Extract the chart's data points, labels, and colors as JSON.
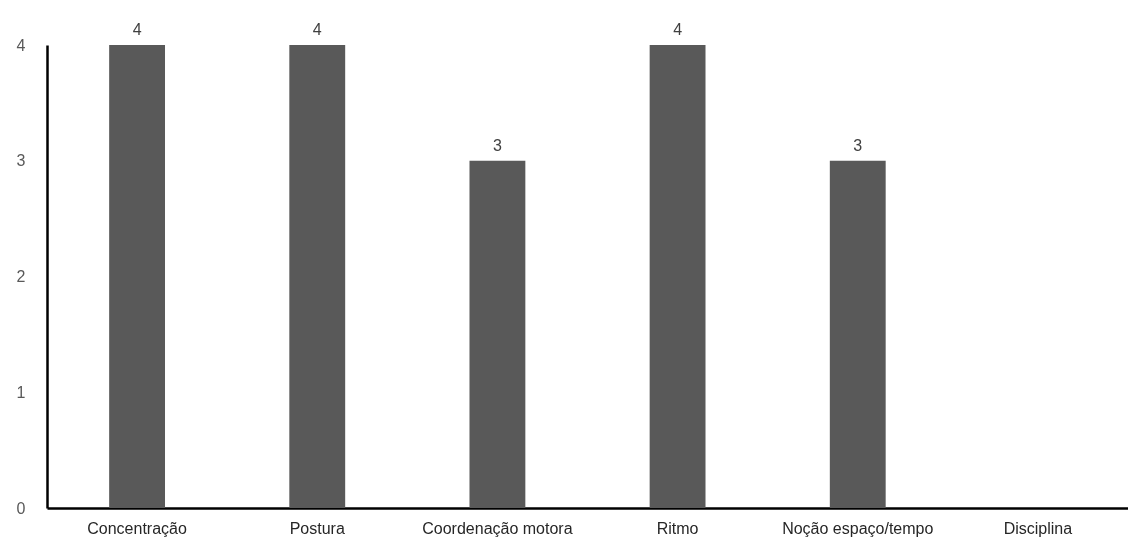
{
  "chart_data": {
    "type": "bar",
    "categories": [
      "Concentração",
      "Postura",
      "Coordenação motora",
      "Ritmo",
      "Noção espaço/tempo",
      "Disciplina"
    ],
    "values": [
      4,
      4,
      3,
      4,
      3,
      0
    ],
    "value_labels": [
      "4",
      "4",
      "3",
      "4",
      "3",
      null
    ],
    "color": "#595959",
    "ylim": [
      0,
      4
    ],
    "yticks": [
      0,
      1,
      2,
      3,
      4
    ],
    "grid": false
  }
}
